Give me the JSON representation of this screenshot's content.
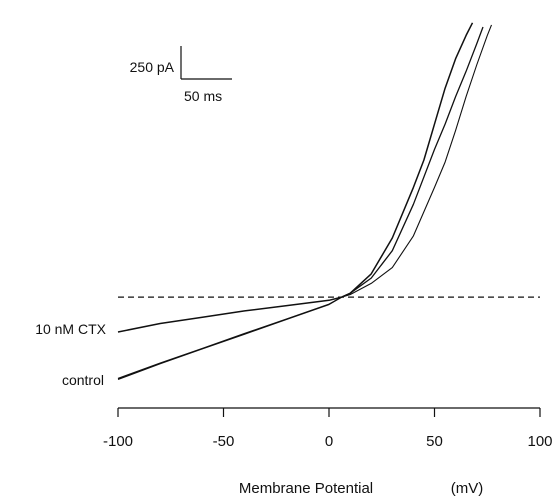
{
  "chart_data": {
    "type": "line",
    "xlabel": "Membrane Potential",
    "xlabel_unit": "(mV)",
    "ylabel": "",
    "xlim": [
      -100,
      100
    ],
    "x_ticks": [
      -100,
      -50,
      0,
      50,
      100
    ],
    "x_tick_labels": [
      "-100",
      "-50",
      "0",
      "50",
      "100"
    ],
    "ylim": [
      -440,
      1370
    ],
    "grid": false,
    "scale_bar": {
      "current_label": "250 pA",
      "current_value": 250,
      "time_label": "50 ms",
      "time_value": 50
    },
    "zero_current_line": {
      "style": "dashed",
      "y": 0
    },
    "series": [
      {
        "name": "control",
        "x": [
          -100,
          -80,
          -60,
          -40,
          -20,
          0,
          6,
          10,
          20,
          30,
          40,
          50,
          55,
          60,
          65,
          70,
          73
        ],
        "y": [
          -390,
          -315,
          -245,
          -175,
          -105,
          -35,
          0,
          18,
          90,
          220,
          440,
          700,
          820,
          950,
          1070,
          1200,
          1280
        ]
      },
      {
        "name": "",
        "x": [
          -100,
          -80,
          -60,
          -40,
          -20,
          0,
          6,
          10,
          20,
          30,
          40,
          50,
          55,
          60,
          65,
          70,
          75,
          77
        ],
        "y": [
          -385,
          -312,
          -243,
          -172,
          -103,
          -33,
          0,
          12,
          65,
          140,
          290,
          520,
          640,
          790,
          950,
          1100,
          1240,
          1290
        ]
      },
      {
        "name": "10 nM CTX",
        "x": [
          -100,
          -80,
          -60,
          -40,
          -20,
          0,
          6,
          10,
          20,
          30,
          40,
          45,
          50,
          55,
          60,
          65,
          68
        ],
        "y": [
          -165,
          -125,
          -95,
          -65,
          -40,
          -15,
          0,
          18,
          110,
          280,
          520,
          650,
          820,
          990,
          1130,
          1240,
          1300
        ]
      }
    ]
  }
}
